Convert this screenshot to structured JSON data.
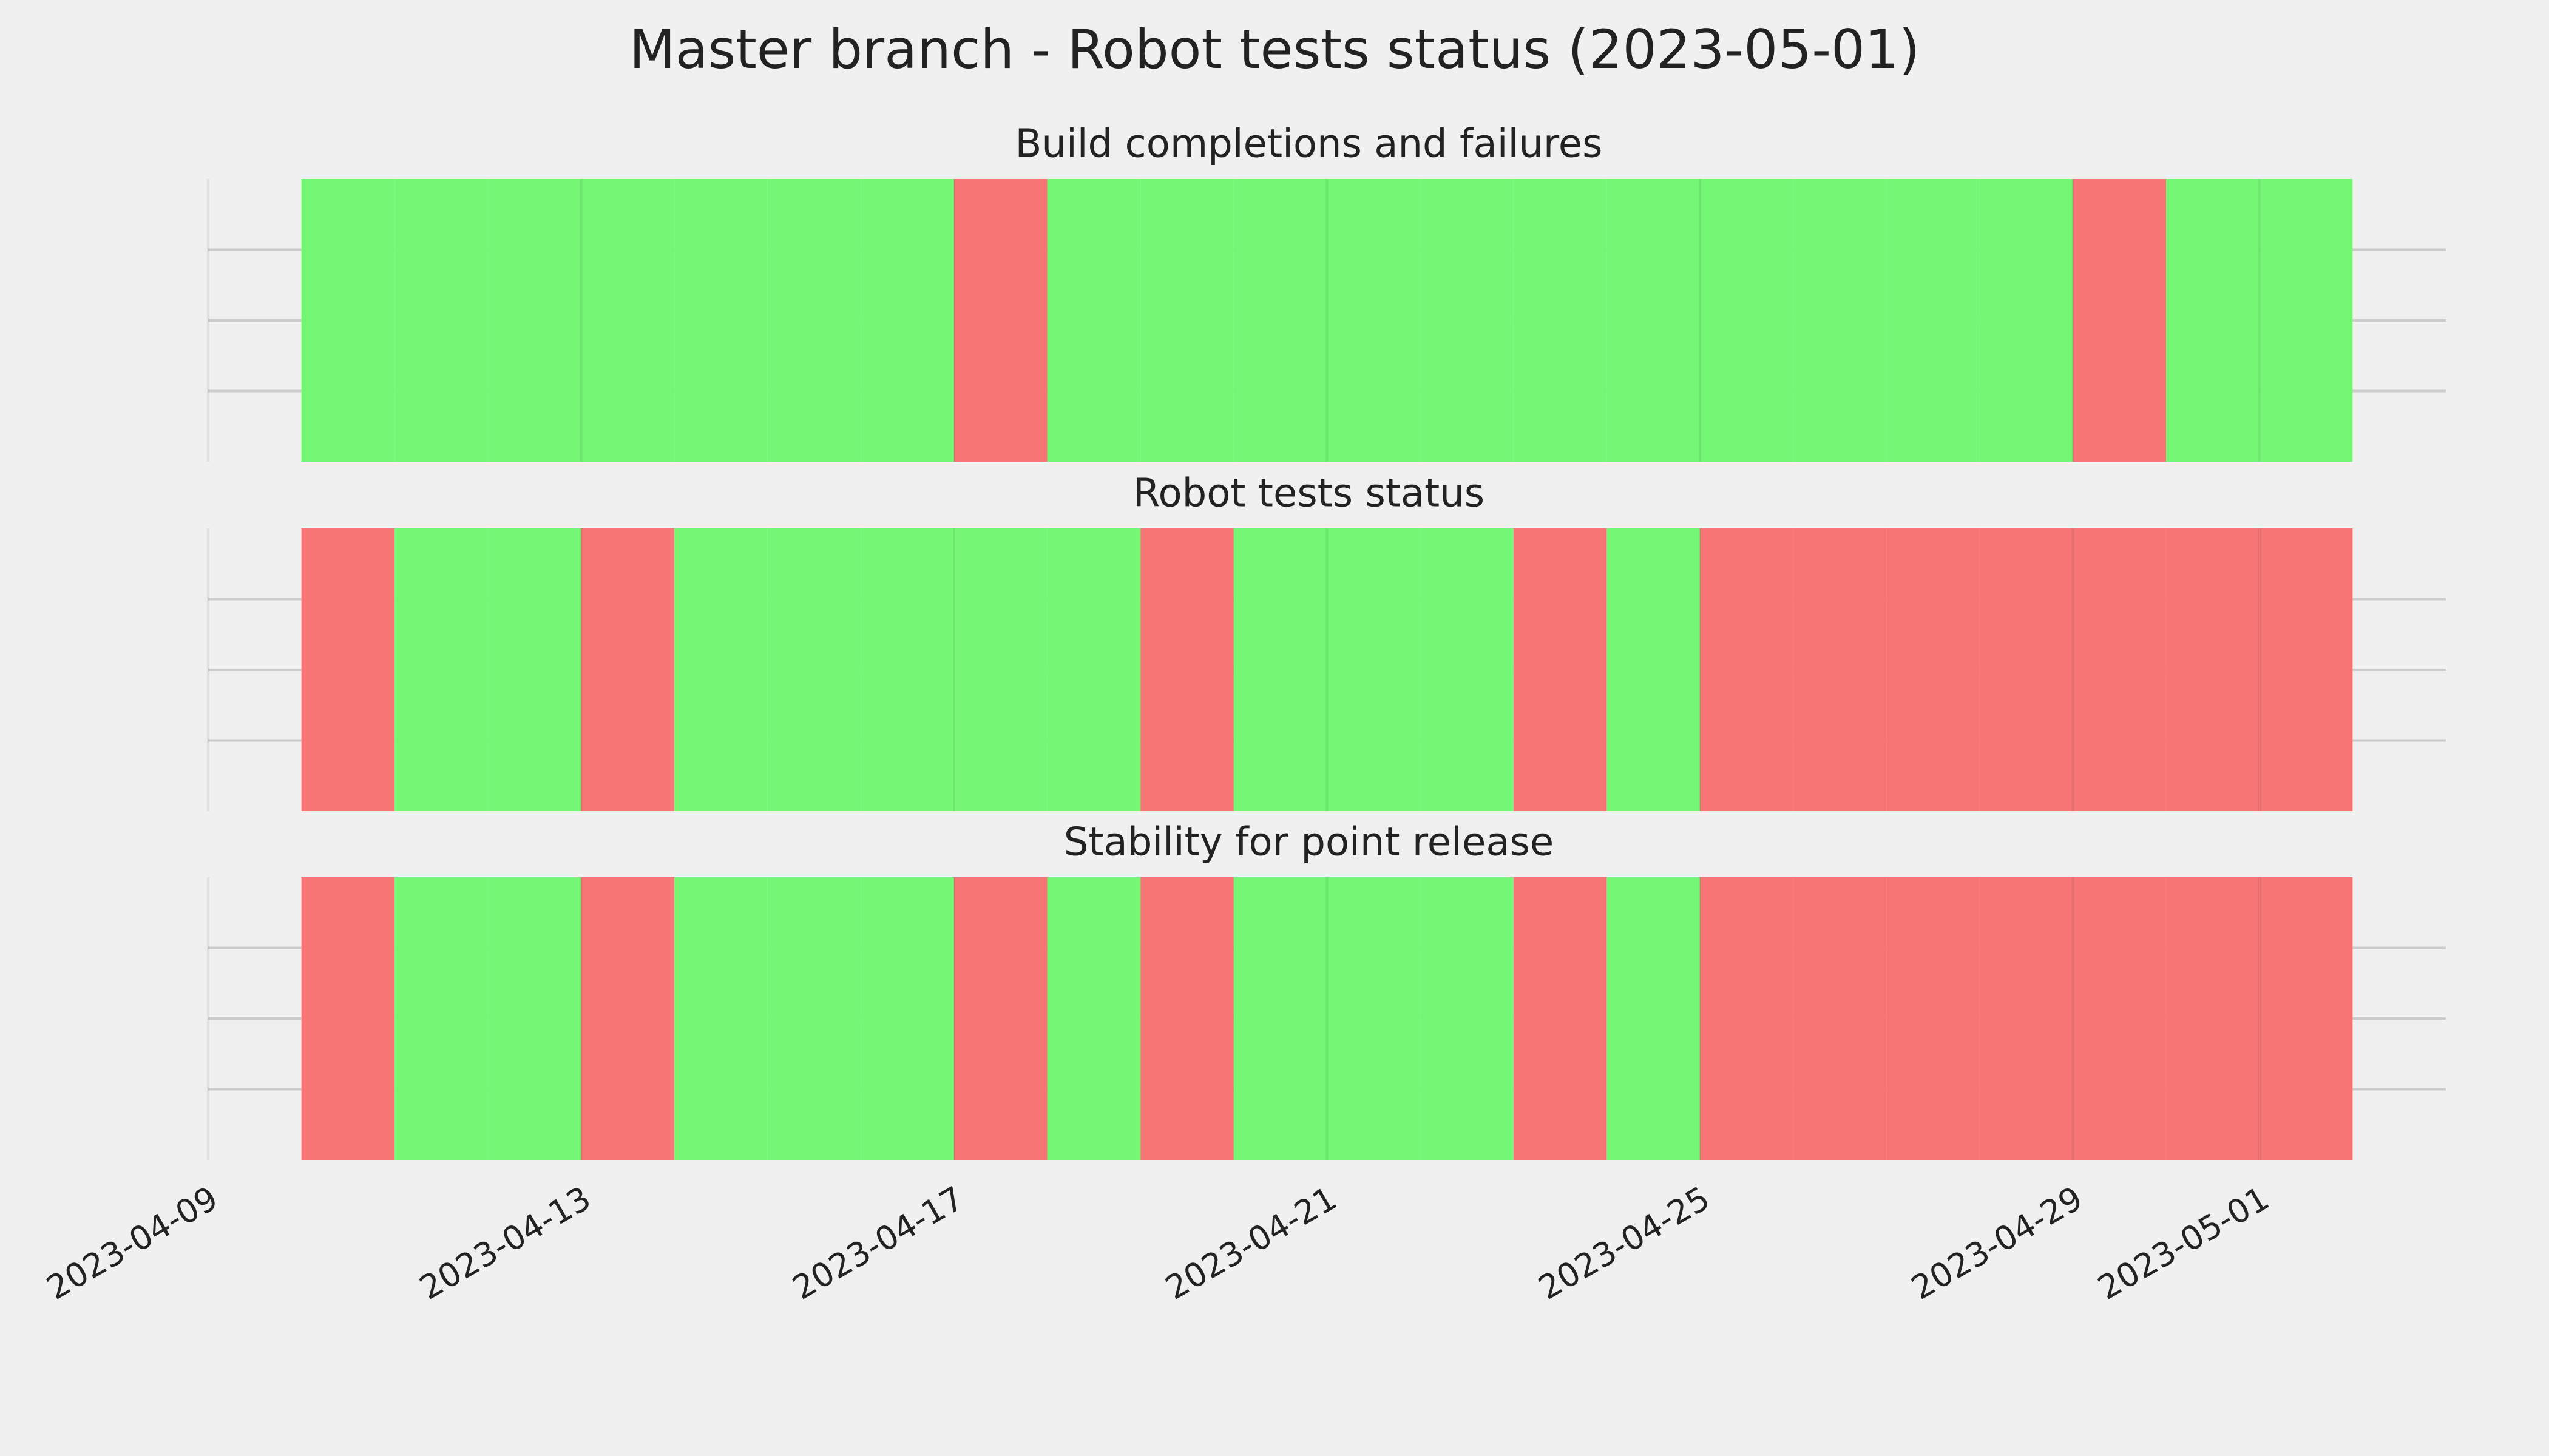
{
  "title": "Master branch - Robot tests status (2023-05-01)",
  "chart_data": [
    {
      "type": "timeline",
      "title": "Build completions and failures",
      "x": [
        "2023-04-10",
        "2023-04-11",
        "2023-04-12",
        "2023-04-13",
        "2023-04-14",
        "2023-04-15",
        "2023-04-16",
        "2023-04-17",
        "2023-04-18",
        "2023-04-19",
        "2023-04-20",
        "2023-04-21",
        "2023-04-22",
        "2023-04-23",
        "2023-04-24",
        "2023-04-25",
        "2023-04-26",
        "2023-04-27",
        "2023-04-28",
        "2023-04-29",
        "2023-04-30",
        "2023-05-01"
      ],
      "colors": [
        "#75f775",
        "#75f775",
        "#75f775",
        "#75f775",
        "#75f775",
        "#75f775",
        "#75f775",
        "#f77575",
        "#75f775",
        "#75f775",
        "#75f775",
        "#75f775",
        "#75f775",
        "#75f775",
        "#75f775",
        "#75f775",
        "#75f775",
        "#75f775",
        "#75f775",
        "#f77575",
        "#75f775",
        "#75f775"
      ],
      "xlim": [
        "2023-04-09",
        "2023-05-03"
      ],
      "xticks": [
        "2023-04-09",
        "2023-04-13",
        "2023-04-17",
        "2023-04-21",
        "2023-04-25",
        "2023-04-29",
        "2023-05-01"
      ],
      "grid": true
    },
    {
      "type": "timeline",
      "title": "Robot tests status",
      "x": [
        "2023-04-10",
        "2023-04-11",
        "2023-04-12",
        "2023-04-13",
        "2023-04-14",
        "2023-04-15",
        "2023-04-16",
        "2023-04-17",
        "2023-04-18",
        "2023-04-19",
        "2023-04-20",
        "2023-04-21",
        "2023-04-22",
        "2023-04-23",
        "2023-04-24",
        "2023-04-25",
        "2023-04-26",
        "2023-04-27",
        "2023-04-28",
        "2023-04-29",
        "2023-04-30",
        "2023-05-01"
      ],
      "colors": [
        "#f77575",
        "#75f775",
        "#75f775",
        "#f77575",
        "#75f775",
        "#75f775",
        "#75f775",
        "#75f775",
        "#75f775",
        "#f77575",
        "#75f775",
        "#75f775",
        "#75f775",
        "#f77575",
        "#75f775",
        "#f77575",
        "#f77575",
        "#f77575",
        "#f77575",
        "#f77575",
        "#f77575",
        "#f77575"
      ],
      "xlim": [
        "2023-04-09",
        "2023-05-03"
      ],
      "xticks": [
        "2023-04-09",
        "2023-04-13",
        "2023-04-17",
        "2023-04-21",
        "2023-04-25",
        "2023-04-29",
        "2023-05-01"
      ],
      "grid": true
    },
    {
      "type": "timeline",
      "title": "Stability for point release",
      "x": [
        "2023-04-10",
        "2023-04-11",
        "2023-04-12",
        "2023-04-13",
        "2023-04-14",
        "2023-04-15",
        "2023-04-16",
        "2023-04-17",
        "2023-04-18",
        "2023-04-19",
        "2023-04-20",
        "2023-04-21",
        "2023-04-22",
        "2023-04-23",
        "2023-04-24",
        "2023-04-25",
        "2023-04-26",
        "2023-04-27",
        "2023-04-28",
        "2023-04-29",
        "2023-04-30",
        "2023-05-01"
      ],
      "colors": [
        "#f77575",
        "#75f775",
        "#75f775",
        "#f77575",
        "#75f775",
        "#75f775",
        "#75f775",
        "#f77575",
        "#75f775",
        "#f77575",
        "#75f775",
        "#75f775",
        "#75f775",
        "#f77575",
        "#75f775",
        "#f77575",
        "#f77575",
        "#f77575",
        "#f77575",
        "#f77575",
        "#f77575",
        "#f77575"
      ],
      "xlim": [
        "2023-04-09",
        "2023-05-03"
      ],
      "xticks": [
        "2023-04-09",
        "2023-04-13",
        "2023-04-17",
        "2023-04-21",
        "2023-04-25",
        "2023-04-29",
        "2023-05-01"
      ],
      "grid": true,
      "show_xtick_labels": true
    }
  ]
}
